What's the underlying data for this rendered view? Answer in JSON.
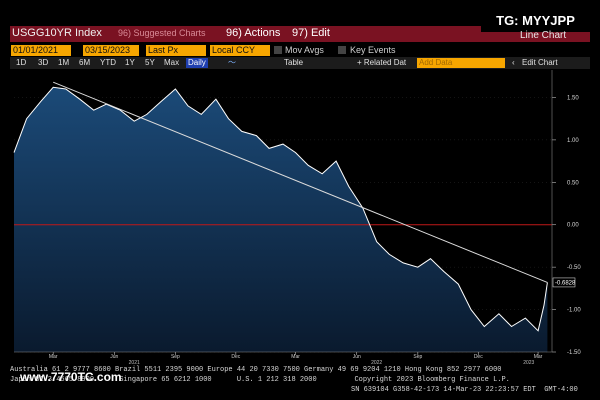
{
  "header": {
    "ticker": "USGG10YR Index",
    "dim_text": "96) Suggested Charts",
    "actions_label": "96) Actions",
    "edit_label": "97) Edit",
    "badge": "TG: MYYJPP",
    "chart_mode": "Line Chart"
  },
  "controls": {
    "date_start": "01/01/2021",
    "date_end": "03/15/2023",
    "field": "Last Px",
    "currency": "Local CCY",
    "mov_avgs": "Mov Avgs",
    "key_events": "Key Events"
  },
  "toolbar": {
    "ranges": [
      "1D",
      "3D",
      "1M",
      "6M",
      "YTD",
      "1Y",
      "5Y",
      "Max"
    ],
    "period": "Daily",
    "table": "Table",
    "related": "+ Related Dat",
    "add_data": "Add Data",
    "edit_chart": "Edit Chart"
  },
  "chart_data": {
    "type": "area",
    "ylim": [
      -1.5,
      1.8
    ],
    "yticks": [
      1.5,
      1.0,
      0.5,
      0.0,
      -0.5,
      -1.0,
      -1.5
    ],
    "ytick_labels": [
      "1.50",
      "1.00",
      "0.50",
      "0.00",
      "-0.50",
      "-1.00",
      "-1.50"
    ],
    "xtick_labels": [
      "Mar",
      "Jun",
      "Sep",
      "Dec",
      "Mar",
      "Jun",
      "Sep",
      "Dec",
      "Mar"
    ],
    "year_labels": [
      "2021",
      "2022",
      "2023"
    ],
    "last_value_label": "-0.6828",
    "reference_line": 0,
    "x": [
      "2021-01-01",
      "2021-01-20",
      "2021-02-10",
      "2021-03-01",
      "2021-03-20",
      "2021-04-10",
      "2021-05-01",
      "2021-05-20",
      "2021-06-10",
      "2021-07-01",
      "2021-07-20",
      "2021-08-10",
      "2021-09-01",
      "2021-09-20",
      "2021-10-10",
      "2021-11-01",
      "2021-11-20",
      "2021-12-10",
      "2022-01-01",
      "2022-01-20",
      "2022-02-10",
      "2022-03-01",
      "2022-03-20",
      "2022-04-10",
      "2022-05-01",
      "2022-05-20",
      "2022-06-10",
      "2022-07-01",
      "2022-07-20",
      "2022-08-10",
      "2022-09-01",
      "2022-09-20",
      "2022-10-10",
      "2022-11-01",
      "2022-11-20",
      "2022-12-10",
      "2023-01-01",
      "2023-01-20",
      "2023-02-10",
      "2023-03-01",
      "2023-03-10",
      "2023-03-15"
    ],
    "values": [
      0.85,
      1.25,
      1.45,
      1.62,
      1.6,
      1.48,
      1.35,
      1.42,
      1.35,
      1.22,
      1.3,
      1.45,
      1.6,
      1.4,
      1.3,
      1.48,
      1.25,
      1.1,
      1.05,
      0.9,
      0.95,
      0.85,
      0.7,
      0.6,
      0.75,
      0.45,
      0.2,
      -0.2,
      -0.35,
      -0.45,
      -0.5,
      -0.4,
      -0.55,
      -0.7,
      -1.0,
      -1.2,
      -1.05,
      -1.2,
      -1.1,
      -1.25,
      -0.95,
      -0.68
    ],
    "trendline": {
      "x": [
        "2021-03-01",
        "2023-03-15"
      ],
      "y": [
        1.68,
        -0.68
      ]
    },
    "colors": {
      "fill_top": "#1b4a78",
      "fill_bottom": "#0a1a2e",
      "line": "#ffffff",
      "zero_line": "#c01818",
      "trend": "#dcdcdc"
    }
  },
  "footer": {
    "line1": "Australia 61 2 9777 8600 Brazil 5511 2395 9000 Europe 44 20 7330 7500 Germany 49 69 9204 1210 Hong Kong 852 2977 6000",
    "line2": "Japan 81 3 4565 8900      Singapore 65 6212 1000      U.S. 1 212 318 2000         Copyright 2023 Bloomberg Finance L.P.",
    "line3": "SN 639104 G358-42-173 14-Mar-23 22:23:57 EDT  GMT-4:00"
  },
  "watermark": "www.7770TC.com"
}
